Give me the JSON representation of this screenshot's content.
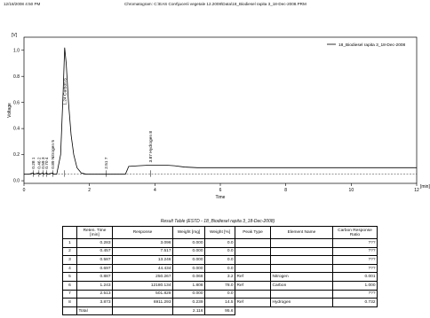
{
  "header": {
    "timestamp": "12/18/2008 4:50 PM",
    "chromatogram_label": "Chromatogram: C:\\EAS Cont\\jucerii vegetale 12.2008\\Data\\18_Biodiesel rapita 3_18-Dec-2008.PRM"
  },
  "chart_data": {
    "type": "line",
    "y_unit": "[V]",
    "ylabel": "Voltage",
    "xlabel": "Time",
    "x_unit": "[min]",
    "xlim": [
      0,
      12
    ],
    "ylim": [
      -0.02,
      1.1
    ],
    "x_ticks": [
      0,
      2,
      4,
      6,
      8,
      10,
      12
    ],
    "x_tick_labels": [
      "0",
      "2",
      "4",
      "6",
      "8",
      "10",
      "12"
    ],
    "y_ticks": [
      0.0,
      0.2,
      0.4,
      0.6,
      0.8,
      1.0
    ],
    "y_tick_labels": [
      "0.0",
      "0.2",
      "0.4",
      "0.6",
      "0.8",
      "1.0"
    ],
    "legend": "18_Biodiesel rapita 3_18-Dec-2008",
    "legend_position": "top-right",
    "series": [
      {
        "name": "18_Biodiesel rapita 3_18-Dec-2008",
        "points": [
          [
            0.0,
            0.05
          ],
          [
            0.15,
            0.05
          ],
          [
            0.283,
            0.06
          ],
          [
            0.3,
            0.05
          ],
          [
            0.457,
            0.06
          ],
          [
            0.47,
            0.05
          ],
          [
            0.587,
            0.06
          ],
          [
            0.6,
            0.05
          ],
          [
            0.697,
            0.06
          ],
          [
            0.72,
            0.05
          ],
          [
            0.887,
            0.06
          ],
          [
            0.9,
            0.05
          ],
          [
            1.0,
            0.05
          ],
          [
            1.12,
            0.2
          ],
          [
            1.2,
            0.7
          ],
          [
            1.243,
            1.02
          ],
          [
            1.29,
            0.9
          ],
          [
            1.36,
            0.6
          ],
          [
            1.44,
            0.35
          ],
          [
            1.52,
            0.2
          ],
          [
            1.62,
            0.1
          ],
          [
            1.75,
            0.06
          ],
          [
            1.9,
            0.05
          ],
          [
            3.0,
            0.05
          ],
          [
            3.1,
            0.05
          ],
          [
            3.2,
            0.11
          ],
          [
            3.5,
            0.115
          ],
          [
            3.873,
            0.12
          ],
          [
            4.3,
            0.12
          ],
          [
            4.6,
            0.115
          ],
          [
            4.9,
            0.105
          ],
          [
            5.3,
            0.1
          ],
          [
            5.8,
            0.1
          ],
          [
            7.0,
            0.1
          ],
          [
            9.0,
            0.1
          ],
          [
            11.9,
            0.1
          ],
          [
            12.0,
            0.1
          ]
        ]
      }
    ],
    "peak_labels": [
      {
        "x": 0.283,
        "y": 0.09,
        "text": "0.28 1"
      },
      {
        "x": 0.457,
        "y": 0.09,
        "text": "0.46 2"
      },
      {
        "x": 0.587,
        "y": 0.09,
        "text": "0.59 3"
      },
      {
        "x": 0.697,
        "y": 0.09,
        "text": "0.70 4"
      },
      {
        "x": 0.887,
        "y": 0.09,
        "text": "0.89 Nitrogen 5"
      },
      {
        "x": 1.243,
        "y": 0.58,
        "text": "1.24 Carbon 6"
      },
      {
        "x": 2.51,
        "y": 0.09,
        "text": "2.51 7"
      },
      {
        "x": 3.873,
        "y": 0.14,
        "text": "3.87 Hydrogen 8"
      }
    ],
    "baseline": {
      "x": [
        0,
        12
      ],
      "y": 0.05
    }
  },
  "result_table": {
    "title": "Result Table (ESTD - 18_Biodiesel rapita 3_18-Dec-2008)",
    "columns": [
      "",
      "Reten. Time [min]",
      "Response",
      "Weight [mg]",
      "Weight [%]",
      "Peak Type",
      "Element Name",
      "Carbon Response Ratio"
    ],
    "rows": [
      [
        "1",
        "0.283",
        "3.096",
        "0.000",
        "0.0",
        "",
        "",
        "???"
      ],
      [
        "2",
        "0.457",
        "7.517",
        "0.000",
        "0.0",
        "",
        "",
        "???"
      ],
      [
        "3",
        "0.587",
        "13.246",
        "0.000",
        "0.0",
        "",
        "",
        "???"
      ],
      [
        "4",
        "0.697",
        "44.434",
        "0.000",
        "0.0",
        "",
        "",
        "???"
      ],
      [
        "5",
        "0.887",
        "250.267",
        "0.068",
        "3.2",
        "Ref",
        "Nitrogen",
        "0.001"
      ],
      [
        "6",
        "1.243",
        "12180.134",
        "1.808",
        "78.0",
        "Ref",
        "Carbon",
        "1.000"
      ],
      [
        "7",
        "2.513",
        "501.828",
        "0.000",
        "0.0",
        "",
        "",
        "???"
      ],
      [
        "8",
        "3.873",
        "6911.293",
        "0.239",
        "14.5",
        "Ref",
        "Hydrogen",
        "0.732"
      ]
    ],
    "total_label": "Total",
    "total_weight_mg": "2.116",
    "total_weight_pct": "95.6"
  }
}
